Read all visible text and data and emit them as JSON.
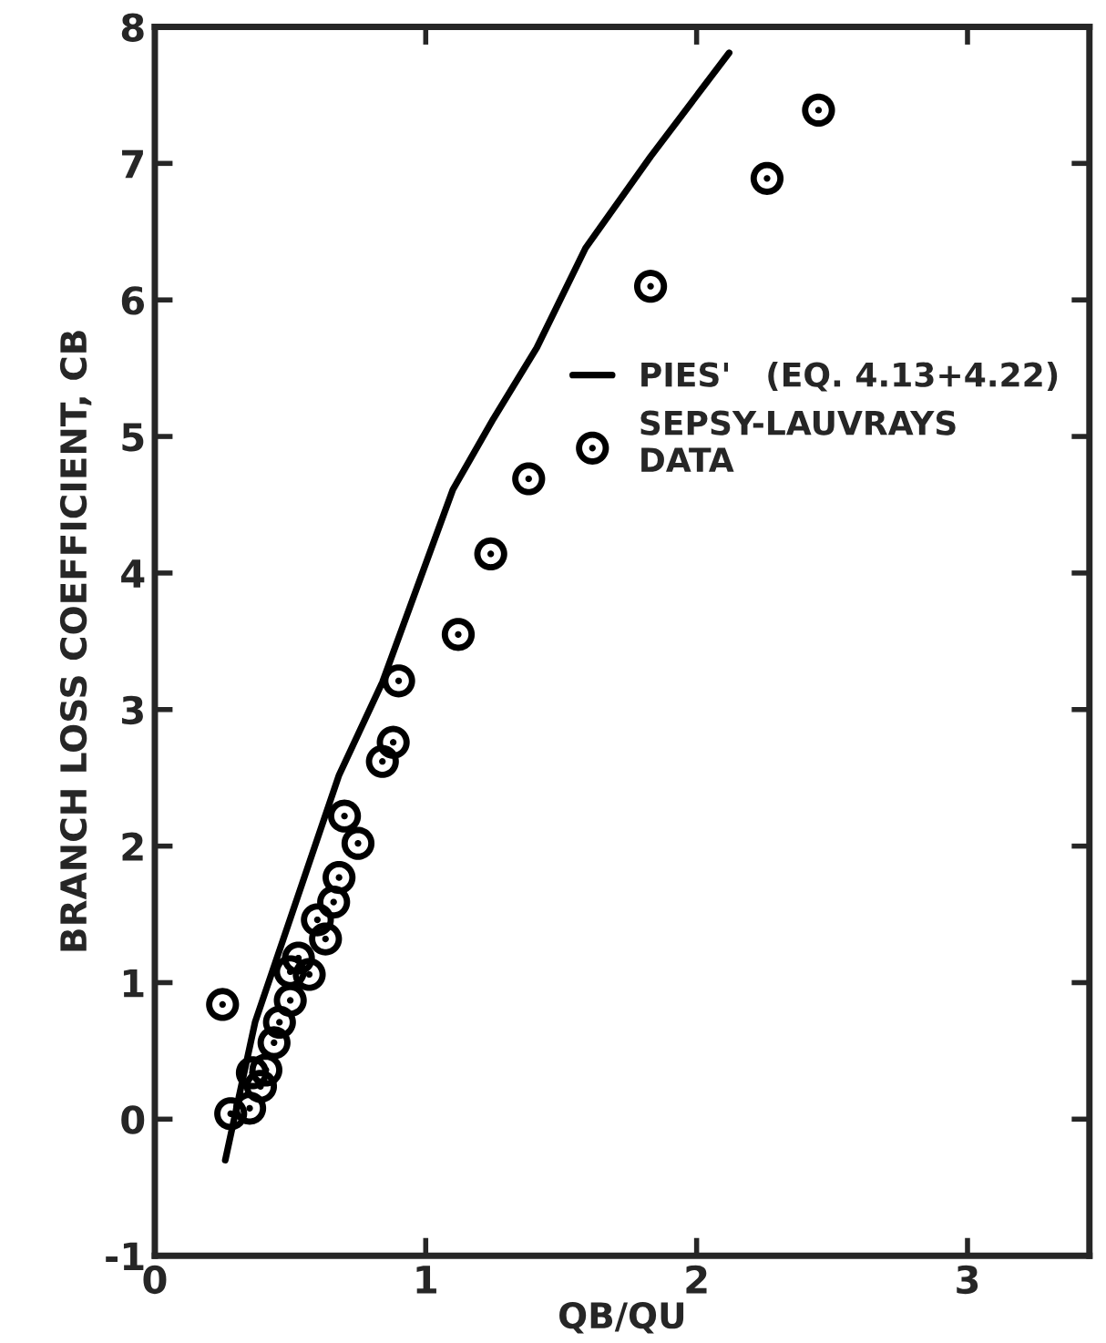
{
  "chart_data": {
    "type": "scatter",
    "xlabel": "QB/QU",
    "ylabel": "BRANCH LOSS COEFFICIENT, CB",
    "xlim": [
      0,
      3.45
    ],
    "ylim": [
      -1,
      8
    ],
    "xticks": [
      0,
      1,
      2,
      3
    ],
    "yticks": [
      -1,
      0,
      1,
      2,
      3,
      4,
      5,
      6,
      7,
      8
    ],
    "grid": false,
    "legend": "right",
    "series": [
      {
        "name": "PIES'   (EQ. 4.13+4.22)",
        "type": "line",
        "color": "#000000",
        "line_style": "solid",
        "marker": "none",
        "x": [
          0.26,
          0.37,
          0.68,
          0.84,
          1.1,
          1.25,
          1.41,
          1.59,
          1.83,
          2.12
        ],
        "values": [
          -0.3,
          0.71,
          2.52,
          3.2,
          4.61,
          5.13,
          5.65,
          6.38,
          7.05,
          7.81
        ]
      },
      {
        "name": "SEPSY-LAUVRAYS\nDATA",
        "color": "#000000",
        "marker": "circle",
        "x": [
          2.45,
          2.26,
          1.83,
          1.38,
          1.24,
          1.12,
          0.9,
          0.88,
          0.84,
          0.7,
          0.75,
          0.68,
          0.66,
          0.6,
          0.63,
          0.53,
          0.5,
          0.57,
          0.5,
          0.46,
          0.44,
          0.25,
          0.36,
          0.41,
          0.39,
          0.28,
          0.35
        ],
        "values": [
          7.39,
          6.89,
          6.1,
          4.69,
          4.14,
          3.55,
          3.21,
          2.76,
          2.62,
          2.22,
          2.02,
          1.77,
          1.59,
          1.46,
          1.32,
          1.18,
          1.08,
          1.06,
          0.87,
          0.71,
          0.56,
          0.84,
          0.34,
          0.36,
          0.24,
          0.04,
          0.08
        ]
      }
    ]
  }
}
